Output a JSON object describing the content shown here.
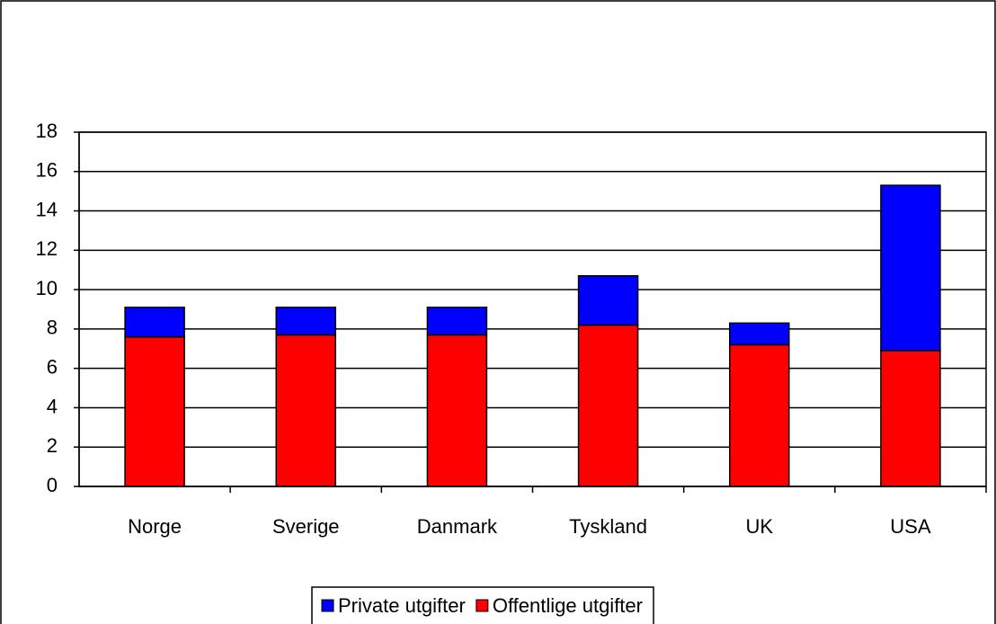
{
  "chart_data": {
    "type": "stacked_bar",
    "categories": [
      "Norge",
      "Sverige",
      "Danmark",
      "Tyskland",
      "UK",
      "USA"
    ],
    "series": [
      {
        "name": "Private utgifter",
        "color": "#0000ff",
        "values": [
          1.5,
          1.4,
          1.4,
          2.5,
          1.1,
          8.4
        ]
      },
      {
        "name": "Offentlige utgifter",
        "color": "#ff0000",
        "values": [
          7.6,
          7.7,
          7.7,
          8.2,
          7.2,
          6.9
        ]
      }
    ],
    "ylim": [
      0,
      18
    ],
    "yticks": [
      0,
      2,
      4,
      6,
      8,
      10,
      12,
      14,
      16,
      18
    ],
    "grid": true,
    "legend": "bottom"
  }
}
